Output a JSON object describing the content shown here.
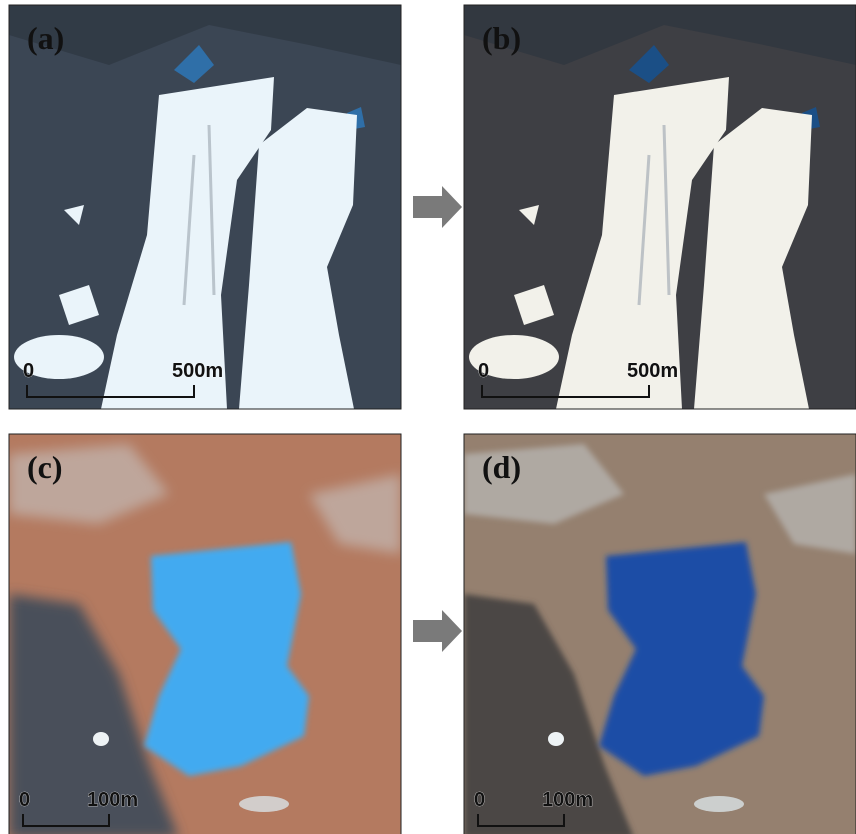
{
  "panels": [
    {
      "label": "(a)",
      "scale_bar": {
        "start": "0",
        "end": "500m"
      }
    },
    {
      "label": "(b)",
      "scale_bar": {
        "start": "0",
        "end": "500m"
      }
    },
    {
      "label": "(c)",
      "scale_bar": {
        "start": "0",
        "end": "100m"
      }
    },
    {
      "label": "(d)",
      "scale_bar": {
        "start": "0",
        "end": "100m"
      }
    }
  ]
}
